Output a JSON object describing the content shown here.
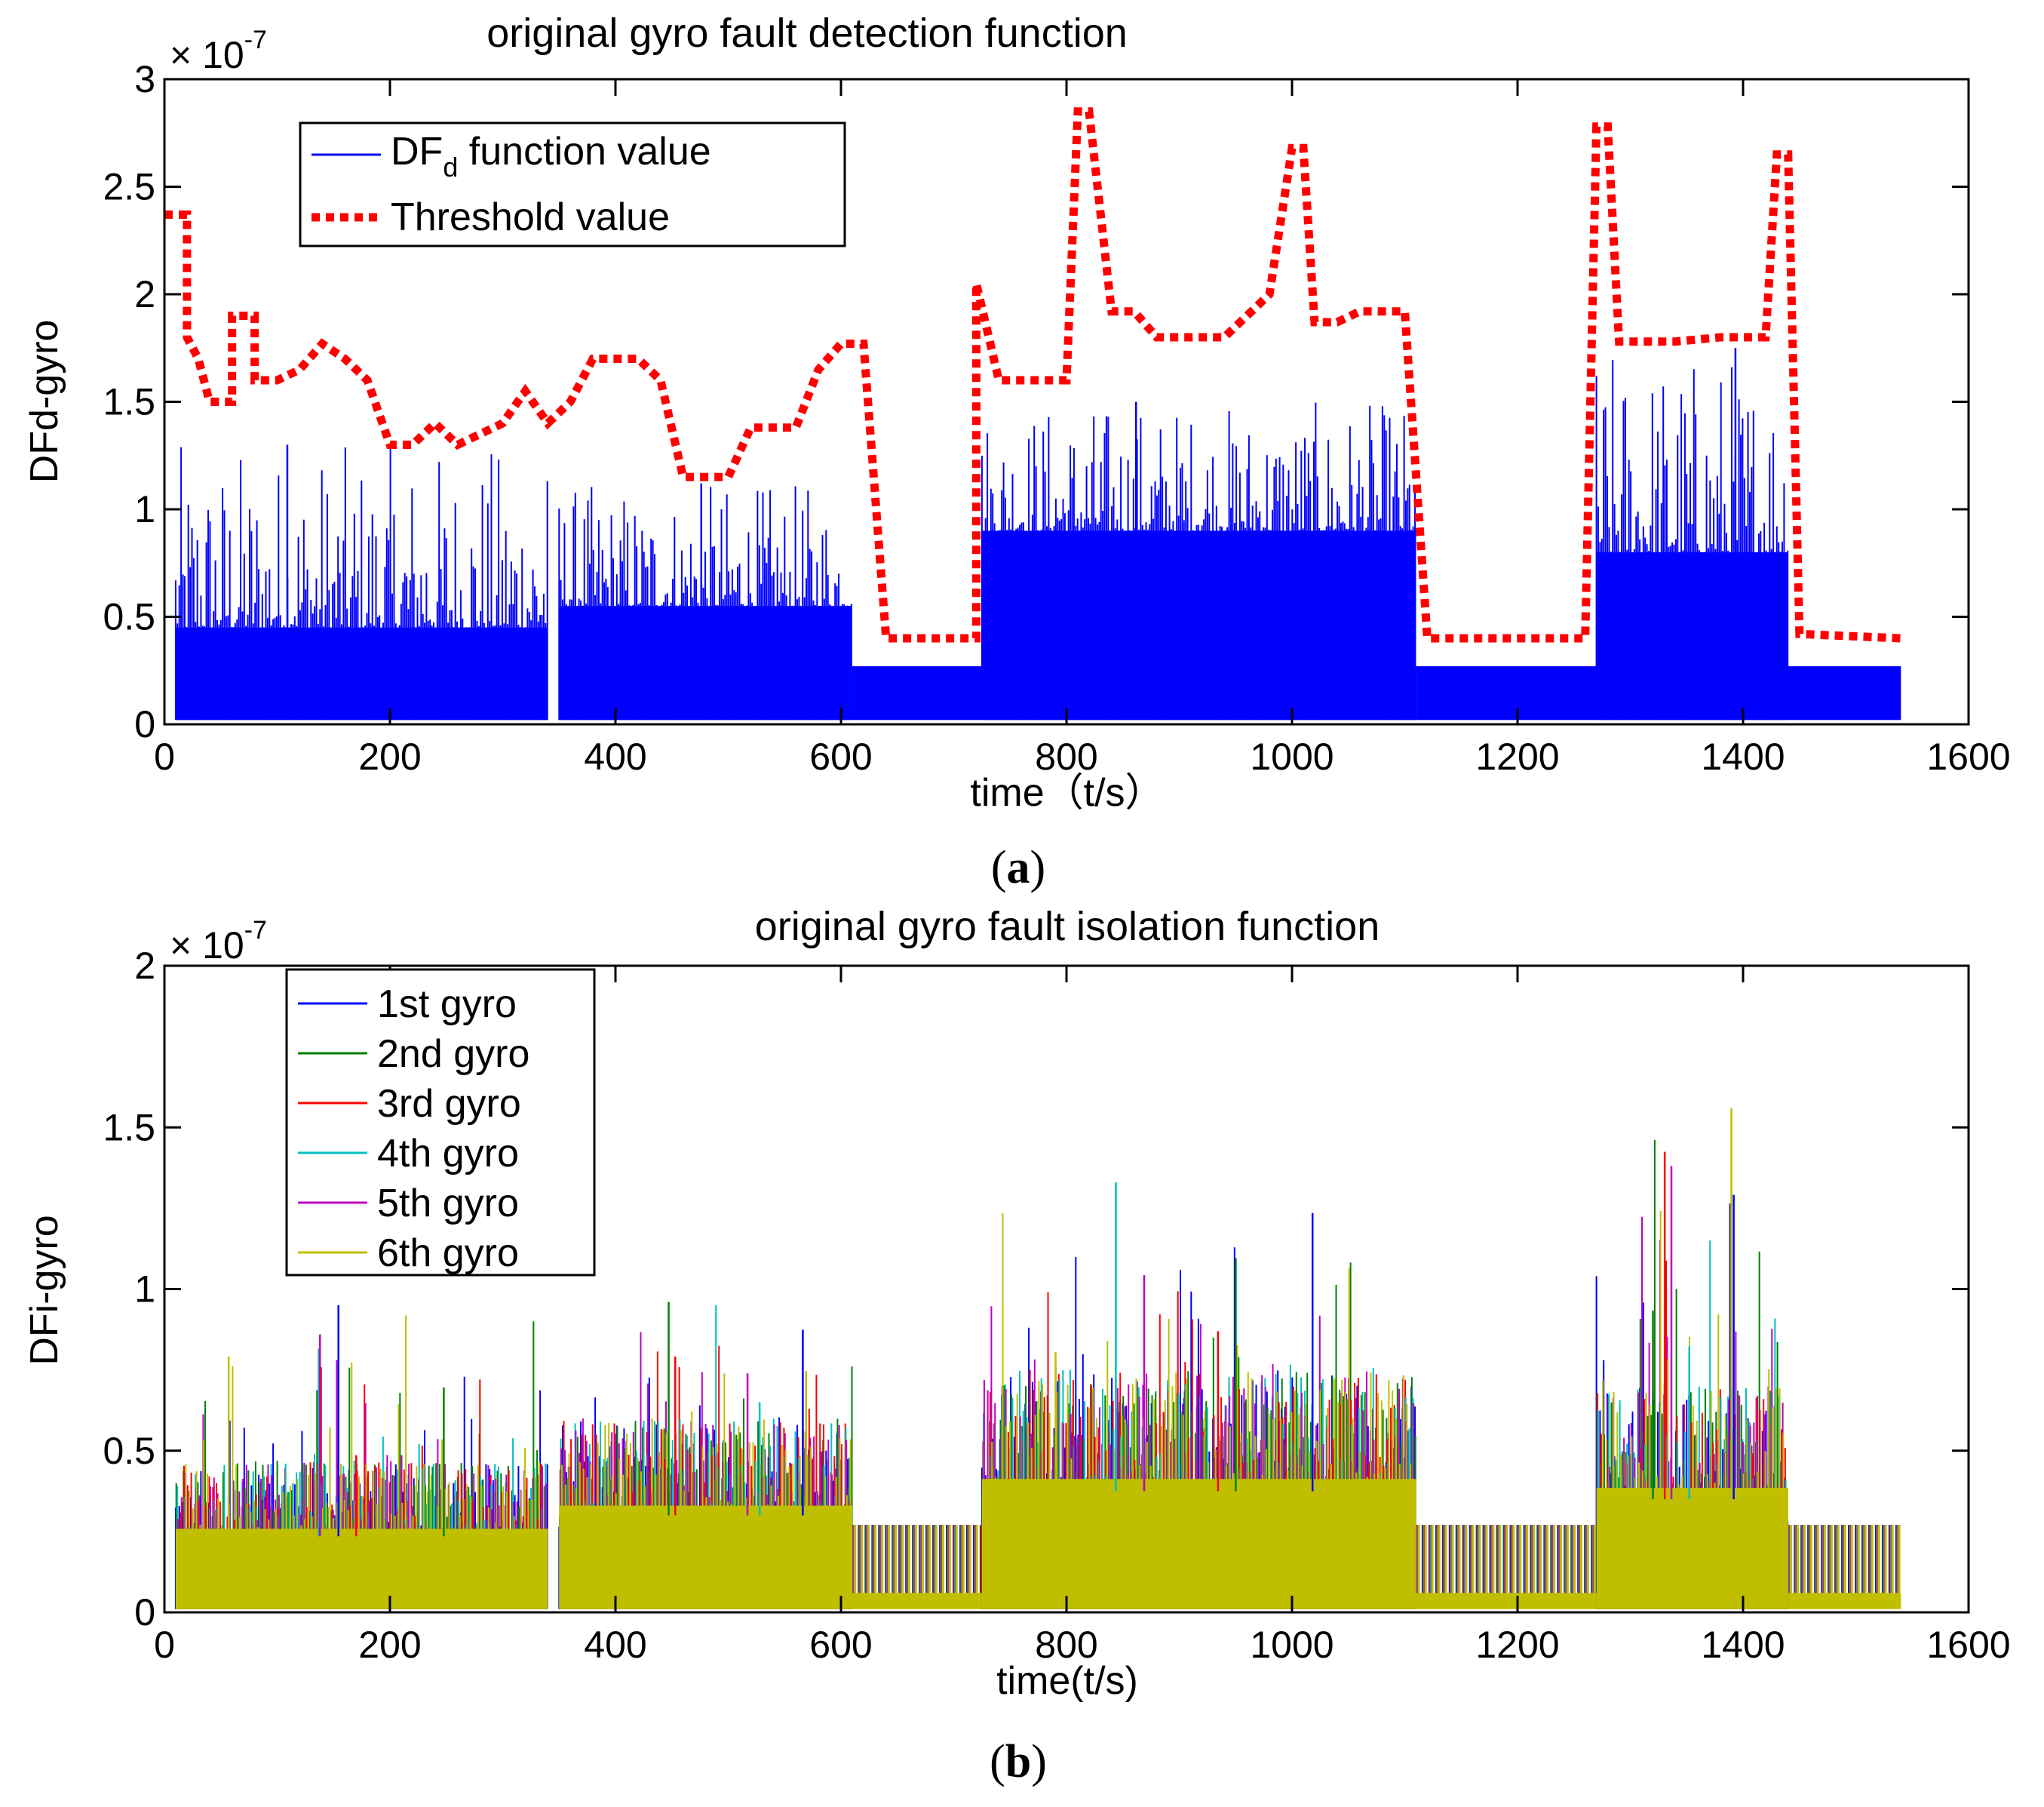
{
  "chart_data": [
    {
      "type": "line",
      "panel_label": "a",
      "title": "original gyro fault detection function",
      "xlabel": "time（t/s）",
      "ylabel": "DFd-gyro",
      "exponent_label": "× 10",
      "exponent_power": "-7",
      "xlim": [
        0,
        1600
      ],
      "ylim": [
        0,
        3
      ],
      "xticks": [
        "0",
        "200",
        "400",
        "600",
        "800",
        "1000",
        "1200",
        "1400",
        "1600"
      ],
      "yticks": [
        "0",
        "0.5",
        "1",
        "1.5",
        "2",
        "2.5",
        "3"
      ],
      "legend_position": "top-left",
      "series": [
        {
          "name_main": "DF",
          "name_sub": "d",
          "name_rest": " function value",
          "color": "#0000ff",
          "style": "solid",
          "segments": [
            {
              "x0": 10,
              "x1": 340,
              "base": 0.45,
              "peak": 1.3
            },
            {
              "x0": 350,
              "x1": 610,
              "base": 0.55,
              "peak": 1.12
            },
            {
              "x0": 610,
              "x1": 725,
              "base": 0.27,
              "peak": 0.27
            },
            {
              "x0": 725,
              "x1": 1110,
              "base": 0.9,
              "peak": 1.5
            },
            {
              "x0": 1110,
              "x1": 1270,
              "base": 0.27,
              "peak": 0.27
            },
            {
              "x0": 1270,
              "x1": 1440,
              "base": 0.8,
              "peak": 1.75
            },
            {
              "x0": 1440,
              "x1": 1540,
              "base": 0.27,
              "peak": 0.27
            }
          ]
        },
        {
          "name": "Threshold value",
          "color": "#ff0000",
          "style": "dotted",
          "x": [
            0,
            20,
            20,
            30,
            40,
            60,
            60,
            80,
            80,
            100,
            120,
            140,
            160,
            180,
            200,
            220,
            240,
            260,
            280,
            300,
            320,
            340,
            360,
            380,
            400,
            420,
            440,
            460,
            480,
            500,
            520,
            540,
            560,
            580,
            600,
            610,
            620,
            640,
            700,
            720,
            720,
            740,
            800,
            810,
            820,
            840,
            860,
            880,
            900,
            940,
            980,
            1000,
            1010,
            1020,
            1040,
            1060,
            1080,
            1100,
            1120,
            1140,
            1260,
            1270,
            1280,
            1290,
            1300,
            1340,
            1380,
            1420,
            1430,
            1440,
            1450,
            1540
          ],
          "y": [
            2.37,
            2.37,
            1.8,
            1.7,
            1.5,
            1.5,
            1.9,
            1.9,
            1.6,
            1.6,
            1.65,
            1.77,
            1.7,
            1.6,
            1.3,
            1.3,
            1.4,
            1.3,
            1.35,
            1.4,
            1.55,
            1.4,
            1.5,
            1.7,
            1.7,
            1.7,
            1.6,
            1.15,
            1.15,
            1.15,
            1.38,
            1.38,
            1.38,
            1.65,
            1.77,
            1.77,
            1.77,
            0.4,
            0.4,
            0.4,
            2.05,
            1.6,
            1.6,
            2.85,
            2.85,
            1.92,
            1.92,
            1.8,
            1.8,
            1.8,
            2.0,
            2.68,
            2.68,
            1.87,
            1.87,
            1.92,
            1.92,
            1.92,
            0.4,
            0.4,
            0.4,
            2.78,
            2.78,
            1.78,
            1.78,
            1.78,
            1.8,
            1.8,
            2.65,
            2.65,
            0.42,
            0.4
          ]
        }
      ]
    },
    {
      "type": "line",
      "panel_label": "b",
      "title": "original gyro fault isolation function",
      "xlabel": "time(t/s)",
      "ylabel": "DFi-gyro",
      "exponent_label": "× 10",
      "exponent_power": "-7",
      "xlim": [
        0,
        1600
      ],
      "ylim": [
        0,
        2
      ],
      "xticks": [
        "0",
        "200",
        "400",
        "600",
        "800",
        "1000",
        "1200",
        "1400",
        "1600"
      ],
      "yticks": [
        "0",
        "0.5",
        "1",
        "1.5",
        "2"
      ],
      "legend_position": "top-left",
      "segments": [
        {
          "x0": 10,
          "x1": 340,
          "base": 0.47,
          "peak": 0.95
        },
        {
          "x0": 350,
          "x1": 610,
          "base": 0.6,
          "peak": 0.96
        },
        {
          "x0": 610,
          "x1": 725,
          "base": 0.27,
          "peak": 0.27
        },
        {
          "x0": 725,
          "x1": 1110,
          "base": 0.75,
          "peak": 1.33
        },
        {
          "x0": 1110,
          "x1": 1270,
          "base": 0.27,
          "peak": 0.27
        },
        {
          "x0": 1270,
          "x1": 1440,
          "base": 0.7,
          "peak": 1.56
        },
        {
          "x0": 1440,
          "x1": 1540,
          "base": 0.27,
          "peak": 0.27
        }
      ],
      "series": [
        {
          "name": "1st gyro",
          "color": "#0000ff"
        },
        {
          "name": "2nd gyro",
          "color": "#008000"
        },
        {
          "name": "3rd gyro",
          "color": "#ff0000"
        },
        {
          "name": "4th gyro",
          "color": "#00bfbf"
        },
        {
          "name": "5th gyro",
          "color": "#bf00bf"
        },
        {
          "name": "6th gyro",
          "color": "#bfbf00"
        }
      ]
    }
  ]
}
